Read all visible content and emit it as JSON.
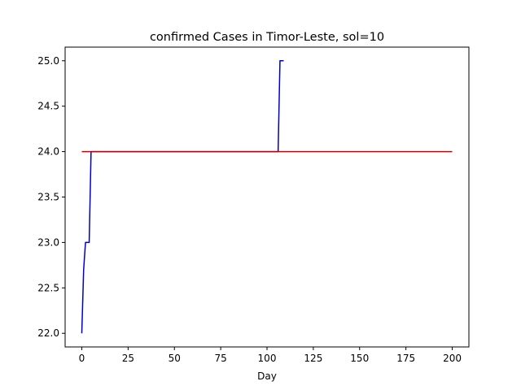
{
  "chart_data": {
    "type": "line",
    "title": "confirmed Cases in Timor-Leste, sol=10",
    "xlabel": "Day",
    "ylabel": "",
    "xlim": [
      -9,
      209
    ],
    "ylim": [
      21.85,
      25.15
    ],
    "xticks": [
      0,
      25,
      50,
      75,
      100,
      125,
      150,
      175,
      200
    ],
    "xtick_labels": [
      "0",
      "25",
      "50",
      "75",
      "100",
      "125",
      "150",
      "175",
      "200"
    ],
    "yticks": [
      22.0,
      22.5,
      23.0,
      23.5,
      24.0,
      24.5,
      25.0
    ],
    "ytick_labels": [
      "22.0",
      "22.5",
      "23.0",
      "23.5",
      "24.0",
      "24.5",
      "25.0"
    ],
    "grid": false,
    "legend": "none",
    "series": [
      {
        "color": "#0000cc",
        "x": [
          0,
          1,
          2,
          3,
          4,
          5,
          6,
          106,
          107,
          108,
          109
        ],
        "y": [
          22,
          22.7,
          23,
          23,
          23,
          24,
          24,
          24,
          25,
          25,
          25
        ]
      },
      {
        "color": "#cc0000",
        "x": [
          0,
          200
        ],
        "y": [
          24,
          24
        ]
      }
    ]
  }
}
